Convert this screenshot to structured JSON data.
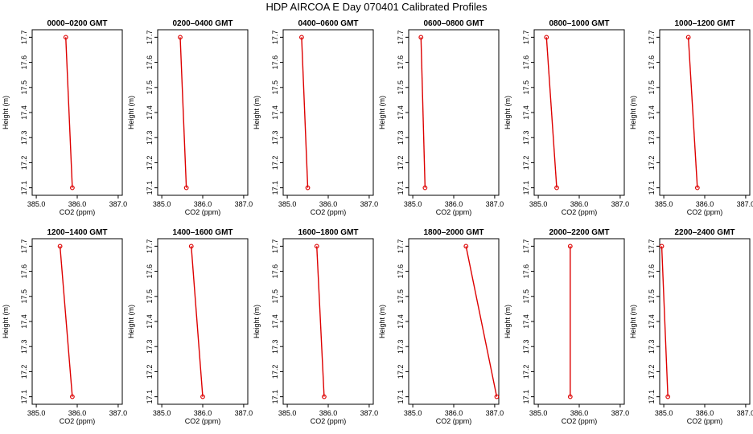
{
  "title": "HDP  AIRCOA E  Day 070401  Calibrated Profiles",
  "colors": {
    "line": "#dd0000",
    "axis": "#000000",
    "background": "#ffffff"
  },
  "chart_data": [
    {
      "type": "line",
      "title": "0000–0200 GMT",
      "xlabel": "CO2 (ppm)",
      "ylabel": "Height (m)",
      "xlim": [
        384.9,
        387.1
      ],
      "ylim": [
        17.07,
        17.73
      ],
      "xticks": [
        "385.0",
        "386.0",
        "387.0"
      ],
      "yticks": [
        "17.1",
        "17.2",
        "17.3",
        "17.4",
        "17.5",
        "17.6",
        "17.7"
      ],
      "grid": false,
      "x": [
        385.72,
        385.88
      ],
      "y": [
        17.7,
        17.1
      ]
    },
    {
      "type": "line",
      "title": "0200–0400 GMT",
      "xlabel": "CO2 (ppm)",
      "ylabel": "Height (m)",
      "xlim": [
        384.9,
        387.1
      ],
      "ylim": [
        17.07,
        17.73
      ],
      "xticks": [
        "385.0",
        "386.0",
        "387.0"
      ],
      "yticks": [
        "17.1",
        "17.2",
        "17.3",
        "17.4",
        "17.5",
        "17.6",
        "17.7"
      ],
      "grid": false,
      "x": [
        385.45,
        385.6
      ],
      "y": [
        17.7,
        17.1
      ]
    },
    {
      "type": "line",
      "title": "0400–0600 GMT",
      "xlabel": "CO2 (ppm)",
      "ylabel": "Height (m)",
      "xlim": [
        384.9,
        387.1
      ],
      "ylim": [
        17.07,
        17.73
      ],
      "xticks": [
        "385.0",
        "386.0",
        "387.0"
      ],
      "yticks": [
        "17.1",
        "17.2",
        "17.3",
        "17.4",
        "17.5",
        "17.6",
        "17.7"
      ],
      "grid": false,
      "x": [
        385.35,
        385.5
      ],
      "y": [
        17.7,
        17.1
      ]
    },
    {
      "type": "line",
      "title": "0600–0800 GMT",
      "xlabel": "CO2 (ppm)",
      "ylabel": "Height (m)",
      "xlim": [
        384.9,
        387.1
      ],
      "ylim": [
        17.07,
        17.73
      ],
      "xticks": [
        "385.0",
        "386.0",
        "387.0"
      ],
      "yticks": [
        "17.1",
        "17.2",
        "17.3",
        "17.4",
        "17.5",
        "17.6",
        "17.7"
      ],
      "grid": false,
      "x": [
        385.2,
        385.3
      ],
      "y": [
        17.7,
        17.1
      ]
    },
    {
      "type": "line",
      "title": "0800–1000 GMT",
      "xlabel": "CO2 (ppm)",
      "ylabel": "Height (m)",
      "xlim": [
        384.9,
        387.1
      ],
      "ylim": [
        17.07,
        17.73
      ],
      "xticks": [
        "385.0",
        "386.0",
        "387.0"
      ],
      "yticks": [
        "17.1",
        "17.2",
        "17.3",
        "17.4",
        "17.5",
        "17.6",
        "17.7"
      ],
      "grid": false,
      "x": [
        385.2,
        385.45
      ],
      "y": [
        17.7,
        17.1
      ]
    },
    {
      "type": "line",
      "title": "1000–1200 GMT",
      "xlabel": "CO2 (ppm)",
      "ylabel": "Height (m)",
      "xlim": [
        384.9,
        387.1
      ],
      "ylim": [
        17.07,
        17.73
      ],
      "xticks": [
        "385.0",
        "386.0",
        "387.0"
      ],
      "yticks": [
        "17.1",
        "17.2",
        "17.3",
        "17.4",
        "17.5",
        "17.6",
        "17.7"
      ],
      "grid": false,
      "x": [
        385.6,
        385.82
      ],
      "y": [
        17.7,
        17.1
      ]
    },
    {
      "type": "line",
      "title": "1200–1400 GMT",
      "xlabel": "CO2 (ppm)",
      "ylabel": "Height (m)",
      "xlim": [
        384.9,
        387.1
      ],
      "ylim": [
        17.07,
        17.73
      ],
      "xticks": [
        "385.0",
        "386.0",
        "387.0"
      ],
      "yticks": [
        "17.1",
        "17.2",
        "17.3",
        "17.4",
        "17.5",
        "17.6",
        "17.7"
      ],
      "grid": false,
      "x": [
        385.58,
        385.88
      ],
      "y": [
        17.7,
        17.1
      ]
    },
    {
      "type": "line",
      "title": "1400–1600 GMT",
      "xlabel": "CO2 (ppm)",
      "ylabel": "Height (m)",
      "xlim": [
        384.9,
        387.1
      ],
      "ylim": [
        17.07,
        17.73
      ],
      "xticks": [
        "385.0",
        "386.0",
        "387.0"
      ],
      "yticks": [
        "17.1",
        "17.2",
        "17.3",
        "17.4",
        "17.5",
        "17.6",
        "17.7"
      ],
      "grid": false,
      "x": [
        385.72,
        386.0
      ],
      "y": [
        17.7,
        17.1
      ]
    },
    {
      "type": "line",
      "title": "1600–1800 GMT",
      "xlabel": "CO2 (ppm)",
      "ylabel": "Height (m)",
      "xlim": [
        384.9,
        387.1
      ],
      "ylim": [
        17.07,
        17.73
      ],
      "xticks": [
        "385.0",
        "386.0",
        "387.0"
      ],
      "yticks": [
        "17.1",
        "17.2",
        "17.3",
        "17.4",
        "17.5",
        "17.6",
        "17.7"
      ],
      "grid": false,
      "x": [
        385.72,
        385.9
      ],
      "y": [
        17.7,
        17.1
      ]
    },
    {
      "type": "line",
      "title": "1800–2000 GMT",
      "xlabel": "CO2 (ppm)",
      "ylabel": "Height (m)",
      "xlim": [
        384.9,
        387.1
      ],
      "ylim": [
        17.07,
        17.73
      ],
      "xticks": [
        "385.0",
        "386.0",
        "387.0"
      ],
      "yticks": [
        "17.1",
        "17.2",
        "17.3",
        "17.4",
        "17.5",
        "17.6",
        "17.7"
      ],
      "grid": false,
      "x": [
        386.3,
        387.05
      ],
      "y": [
        17.7,
        17.1
      ]
    },
    {
      "type": "line",
      "title": "2000–2200 GMT",
      "xlabel": "CO2 (ppm)",
      "ylabel": "Height (m)",
      "xlim": [
        384.9,
        387.1
      ],
      "ylim": [
        17.07,
        17.73
      ],
      "xticks": [
        "385.0",
        "386.0",
        "387.0"
      ],
      "yticks": [
        "17.1",
        "17.2",
        "17.3",
        "17.4",
        "17.5",
        "17.6",
        "17.7"
      ],
      "grid": false,
      "x": [
        385.78,
        385.78
      ],
      "y": [
        17.7,
        17.1
      ]
    },
    {
      "type": "line",
      "title": "2200–2400 GMT",
      "xlabel": "CO2 (ppm)",
      "ylabel": "Height (m)",
      "xlim": [
        384.9,
        387.1
      ],
      "ylim": [
        17.07,
        17.73
      ],
      "xticks": [
        "385.0",
        "386.0",
        "387.0"
      ],
      "yticks": [
        "17.1",
        "17.2",
        "17.3",
        "17.4",
        "17.5",
        "17.6",
        "17.7"
      ],
      "grid": false,
      "x": [
        384.95,
        385.1
      ],
      "y": [
        17.7,
        17.1
      ]
    }
  ]
}
